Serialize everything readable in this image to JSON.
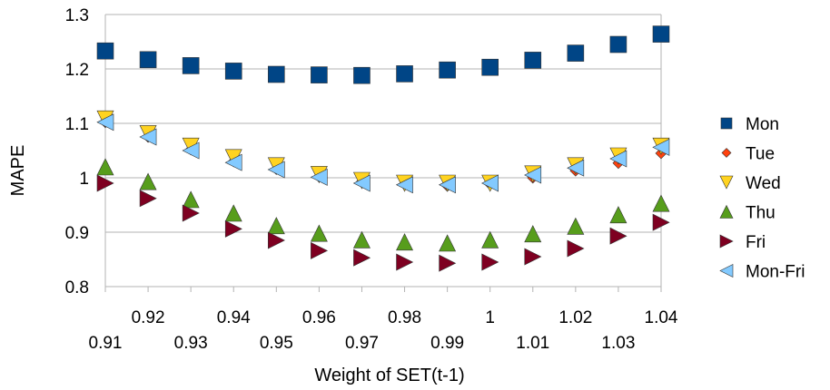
{
  "chart_data": {
    "type": "scatter",
    "xlabel": "Weight of SET(t-1)",
    "ylabel": "MAPE",
    "xlim": [
      0.91,
      1.04
    ],
    "ylim": [
      0.8,
      1.3
    ],
    "yticks": [
      "0.8",
      "0.9",
      "1",
      "1.1",
      "1.2",
      "1.3"
    ],
    "xticks_upper": [
      "0.92",
      "0.94",
      "0.96",
      "0.98",
      "1",
      "1.02",
      "1.04"
    ],
    "xticks_lower": [
      "0.91",
      "0.93",
      "0.95",
      "0.97",
      "0.99",
      "1.01",
      "1.03"
    ],
    "x": [
      0.91,
      0.92,
      0.93,
      0.94,
      0.95,
      0.96,
      0.97,
      0.98,
      0.99,
      1.0,
      1.01,
      1.02,
      1.03,
      1.04
    ],
    "grid": "horizontal",
    "legend_position": "right",
    "series": [
      {
        "name": "Mon",
        "marker": "square",
        "color": "#004586",
        "values": [
          1.233,
          1.217,
          1.206,
          1.196,
          1.19,
          1.189,
          1.188,
          1.191,
          1.198,
          1.203,
          1.216,
          1.229,
          1.245,
          1.264
        ]
      },
      {
        "name": "Tue",
        "marker": "diamond",
        "color": "#ff420e",
        "values": [
          1.102,
          1.075,
          1.052,
          1.03,
          1.016,
          1.002,
          0.993,
          0.988,
          0.985,
          0.988,
          1.0,
          1.013,
          1.027,
          1.045
        ]
      },
      {
        "name": "Wed",
        "marker": "triangle-down",
        "color": "#ffd320",
        "values": [
          1.108,
          1.081,
          1.058,
          1.037,
          1.022,
          1.006,
          0.995,
          0.99,
          0.99,
          0.99,
          1.007,
          1.022,
          1.04,
          1.058
        ]
      },
      {
        "name": "Thu",
        "marker": "triangle-up",
        "color": "#579d1c",
        "values": [
          1.02,
          0.993,
          0.96,
          0.935,
          0.912,
          0.898,
          0.886,
          0.882,
          0.88,
          0.886,
          0.897,
          0.911,
          0.932,
          0.953
        ]
      },
      {
        "name": "Fri",
        "marker": "triangle-right",
        "color": "#7e0021",
        "values": [
          0.99,
          0.962,
          0.935,
          0.906,
          0.885,
          0.866,
          0.853,
          0.845,
          0.843,
          0.845,
          0.855,
          0.87,
          0.893,
          0.918
        ]
      },
      {
        "name": "Mon-Fri",
        "marker": "triangle-left",
        "color": "#83caff",
        "values": [
          1.102,
          1.075,
          1.05,
          1.028,
          1.015,
          1.001,
          0.99,
          0.987,
          0.987,
          0.99,
          1.005,
          1.018,
          1.035,
          1.056
        ]
      }
    ]
  }
}
